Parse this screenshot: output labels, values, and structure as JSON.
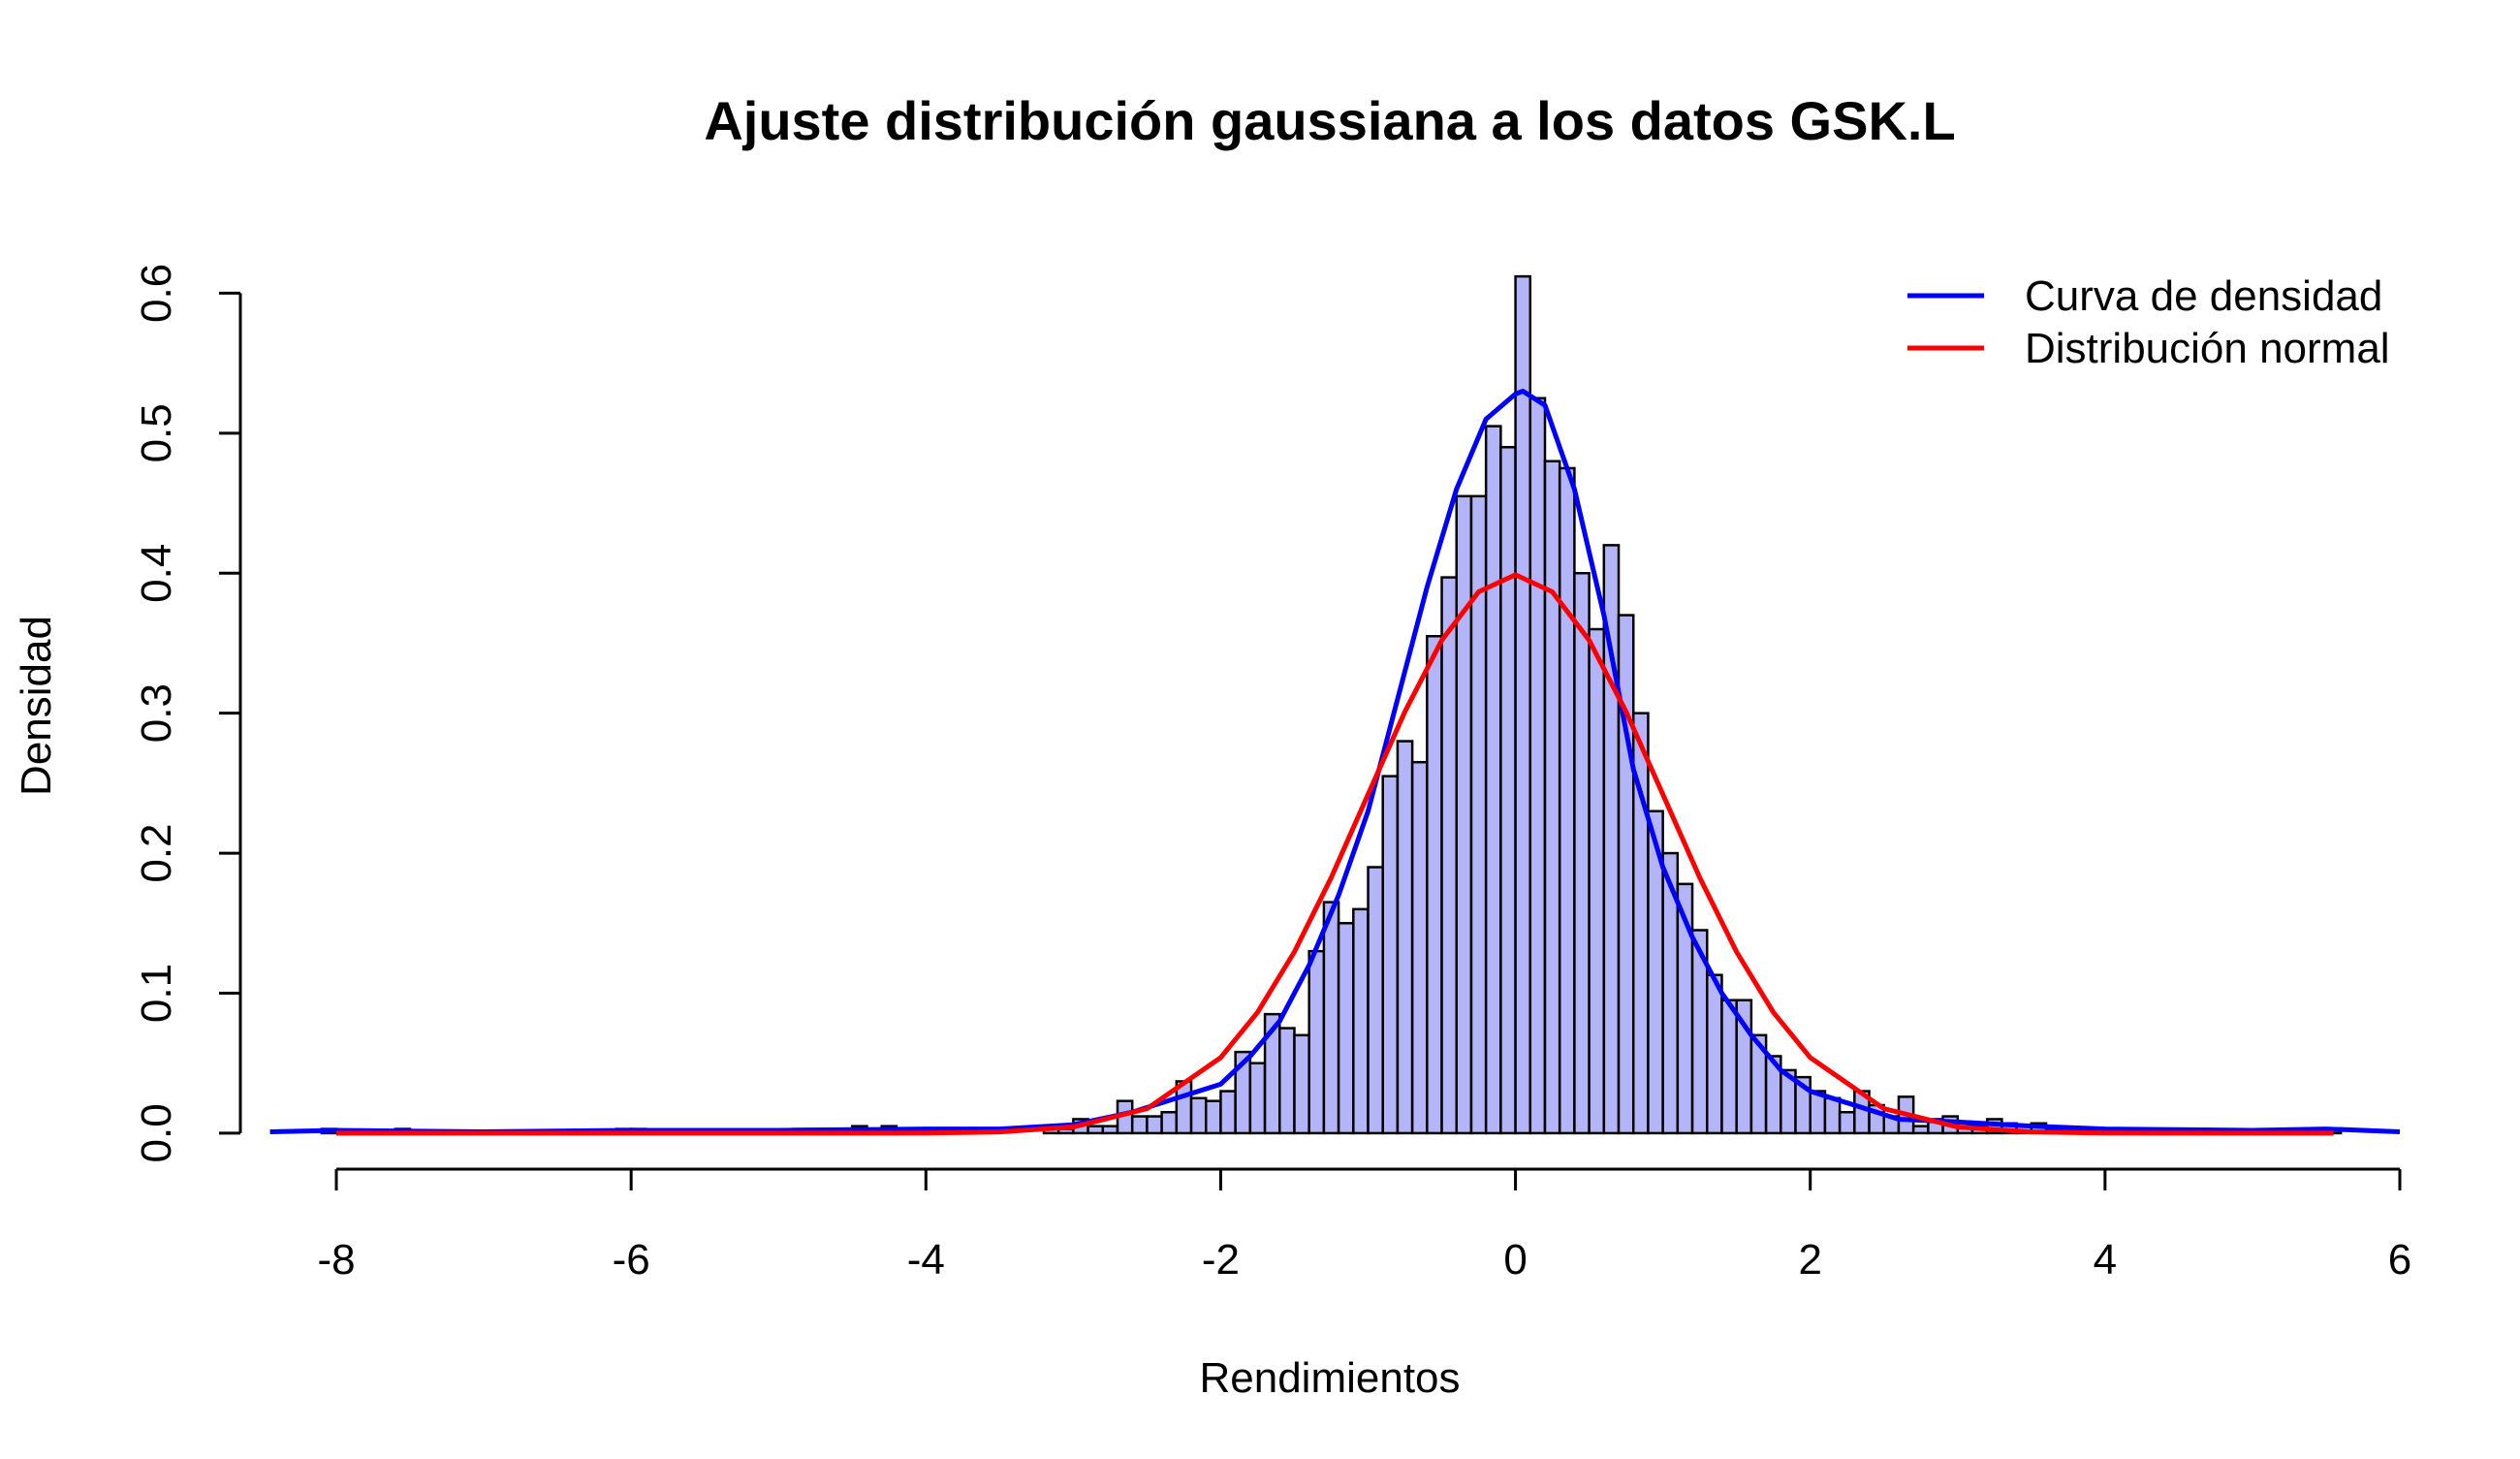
{
  "chart_data": {
    "type": "histogram",
    "title": "Ajuste distribución gaussiana a los datos GSK.L",
    "xlabel": "Rendimientos",
    "ylabel": "Densidad",
    "bins": [
      -8.1,
      -8,
      -7.9,
      -7.8,
      -7.7,
      -7.6,
      -7.5,
      -7.4,
      -7.3,
      -7.2,
      -7.1,
      -7,
      -6.9,
      -6.8,
      -6.7,
      -6.6,
      -6.5,
      -6.4,
      -6.3,
      -6.2,
      -6.1,
      -6,
      -5.9,
      -5.8,
      -5.7,
      -5.6,
      -5.5,
      -5.4,
      -5.3,
      -5.2,
      -5.1,
      -5,
      -4.9,
      -4.8,
      -4.7,
      -4.6,
      -4.5,
      -4.4,
      -4.3,
      -4.2,
      -4.1,
      -4,
      -3.9,
      -3.8,
      -3.7,
      -3.6,
      -3.5,
      -3.4,
      -3.3,
      -3.2,
      -3.1,
      -3,
      -2.9,
      -2.8,
      -2.7,
      -2.6,
      -2.5,
      -2.4,
      -2.3,
      -2.2,
      -2.1,
      -2,
      -1.9,
      -1.8,
      -1.7,
      -1.6,
      -1.5,
      -1.4,
      -1.3,
      -1.2,
      -1.1,
      -1,
      -0.9,
      -0.8,
      -0.7,
      -0.6,
      -0.5,
      -0.4,
      -0.3,
      -0.2,
      -0.1,
      0,
      0.1,
      0.2,
      0.3,
      0.4,
      0.5,
      0.6,
      0.7,
      0.8,
      0.9,
      1,
      1.1,
      1.2,
      1.3,
      1.4,
      1.5,
      1.6,
      1.7,
      1.8,
      1.9,
      2,
      2.1,
      2.2,
      2.3,
      2.4,
      2.5,
      2.6,
      2.7,
      2.8,
      2.9,
      3,
      3.1,
      3.2,
      3.3,
      3.4,
      3.5,
      3.6,
      3.7,
      3.8,
      3.9,
      4,
      4.1,
      4.2,
      4.3,
      4.4,
      4.5,
      4.6,
      4.7,
      4.8,
      4.9,
      5,
      5.1,
      5.2,
      5.3,
      5.4,
      5.5,
      5.6
    ],
    "counts": [
      0.003,
      0,
      0,
      0,
      0,
      0.003,
      0,
      0,
      0,
      0,
      0,
      0,
      0,
      0,
      0,
      0,
      0,
      0,
      0,
      0,
      0.003,
      0.003,
      0,
      0,
      0,
      0,
      0,
      0,
      0,
      0,
      0,
      0,
      0.003,
      0.003,
      0.003,
      0.003,
      0.005,
      0.003,
      0.005,
      0.003,
      0,
      0.003,
      0,
      0,
      0,
      0,
      0,
      0,
      0,
      0.005,
      0.003,
      0.01,
      0.005,
      0.005,
      0.023,
      0.012,
      0.012,
      0.015,
      0.037,
      0.025,
      0.023,
      0.03,
      0.058,
      0.05,
      0.085,
      0.075,
      0.07,
      0.13,
      0.165,
      0.15,
      0.16,
      0.19,
      0.255,
      0.28,
      0.265,
      0.355,
      0.397,
      0.455,
      0.455,
      0.505,
      0.49,
      0.612,
      0.525,
      0.48,
      0.475,
      0.4,
      0.36,
      0.42,
      0.37,
      0.3,
      0.23,
      0.2,
      0.178,
      0.145,
      0.113,
      0.095,
      0.095,
      0.07,
      0.055,
      0.045,
      0.04,
      0.03,
      0.025,
      0.015,
      0.03,
      0.02,
      0.012,
      0.026,
      0.005,
      0.01,
      0.012,
      0.005,
      0.005,
      0.01,
      0.007,
      0.005,
      0.007,
      0.003,
      0.003,
      0.003,
      0.003,
      0,
      0,
      0,
      0,
      0,
      0,
      0,
      0,
      0,
      0,
      0,
      0,
      0.003,
      0,
      0.003,
      0.003
    ],
    "color": "#b4b4f8",
    "series": [
      {
        "name": "Curva de densidad",
        "color": "#0000ff",
        "x": [
          -8.45,
          -8,
          -7,
          -6,
          -5,
          -4,
          -3.5,
          -3,
          -2.6,
          -2.3,
          -2,
          -1.8,
          -1.6,
          -1.4,
          -1.2,
          -1,
          -0.8,
          -0.6,
          -0.4,
          -0.2,
          0,
          0.05,
          0.2,
          0.4,
          0.6,
          0.8,
          1,
          1.2,
          1.4,
          1.6,
          1.8,
          2,
          2.3,
          2.6,
          3,
          3.5,
          4,
          5,
          5.5,
          6
        ],
        "values": [
          0.001,
          0.002,
          0.001,
          0.002,
          0.002,
          0.003,
          0.003,
          0.006,
          0.015,
          0.025,
          0.035,
          0.055,
          0.08,
          0.12,
          0.17,
          0.23,
          0.31,
          0.39,
          0.46,
          0.51,
          0.528,
          0.53,
          0.52,
          0.46,
          0.37,
          0.26,
          0.19,
          0.14,
          0.1,
          0.07,
          0.045,
          0.03,
          0.02,
          0.01,
          0.008,
          0.005,
          0.003,
          0.002,
          0.003,
          0.001
        ]
      },
      {
        "name": "Distribución normal",
        "color": "#ff0000",
        "x": [
          -8,
          -5,
          -4,
          -3.5,
          -3,
          -2.5,
          -2,
          -1.75,
          -1.5,
          -1.25,
          -1,
          -0.75,
          -0.5,
          -0.25,
          0,
          0.25,
          0.5,
          0.75,
          1,
          1.25,
          1.5,
          1.75,
          2,
          2.5,
          3,
          3.5,
          4,
          5,
          5.55
        ],
        "values": [
          0,
          0,
          0.0001,
          0.0009,
          0.0044,
          0.0175,
          0.054,
          0.0863,
          0.1295,
          0.1826,
          0.242,
          0.3011,
          0.3521,
          0.3867,
          0.3989,
          0.3867,
          0.3521,
          0.3011,
          0.242,
          0.1826,
          0.1295,
          0.0863,
          0.054,
          0.0175,
          0.0044,
          0.0009,
          0.0001,
          0,
          0
        ]
      }
    ],
    "xlim": [
      -8.45,
      6.0
    ],
    "ylim": [
      -0.025,
      0.637
    ],
    "xticks": [
      -8,
      -6,
      -4,
      -2,
      0,
      2,
      4,
      6
    ],
    "yticks": [
      {
        "value": 0,
        "label": "0.0"
      },
      0.1,
      0.2,
      0.3,
      0.4,
      0.5,
      0.6
    ],
    "legend": "topright"
  }
}
